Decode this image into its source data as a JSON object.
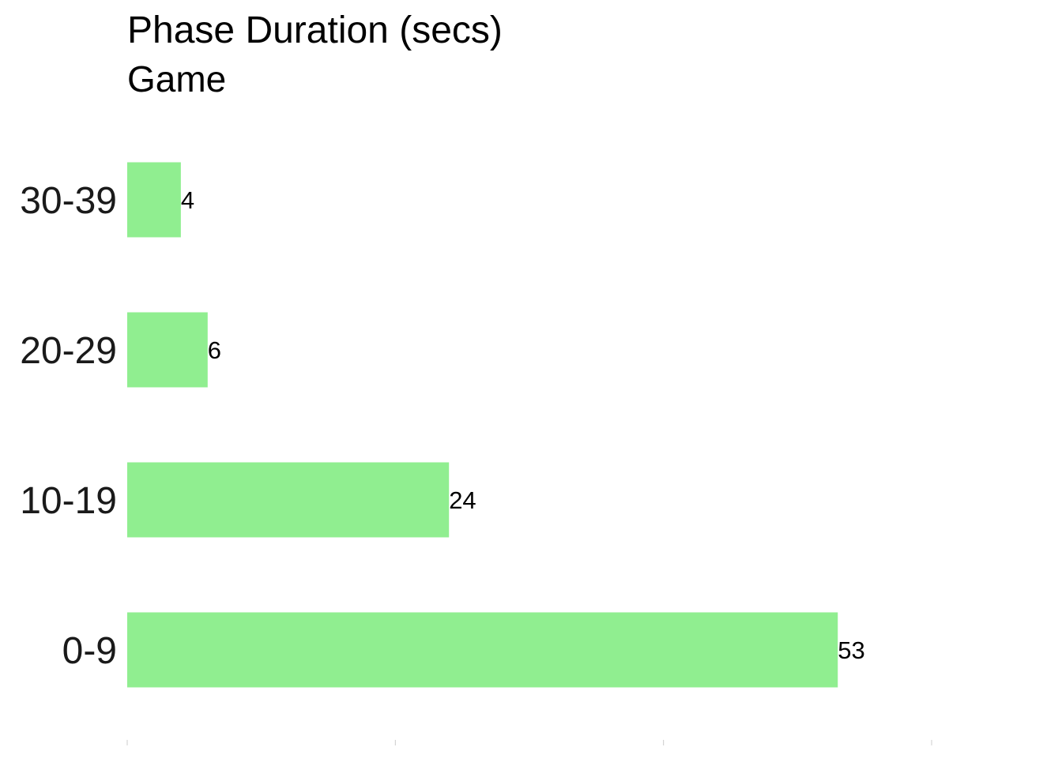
{
  "chart_data": {
    "type": "bar",
    "orientation": "horizontal",
    "title": "Phase Duration (secs)",
    "subtitle": "Game",
    "categories": [
      "0-9",
      "10-19",
      "20-29",
      "30-39"
    ],
    "values": [
      53,
      24,
      6,
      4
    ],
    "xlim": [
      0,
      60
    ],
    "x_ticks": [
      0,
      20,
      40,
      60
    ],
    "x_tick_labels_shown": false,
    "grid": false,
    "legend": "none",
    "bar_color": "#90EE90",
    "data_labels": true
  }
}
